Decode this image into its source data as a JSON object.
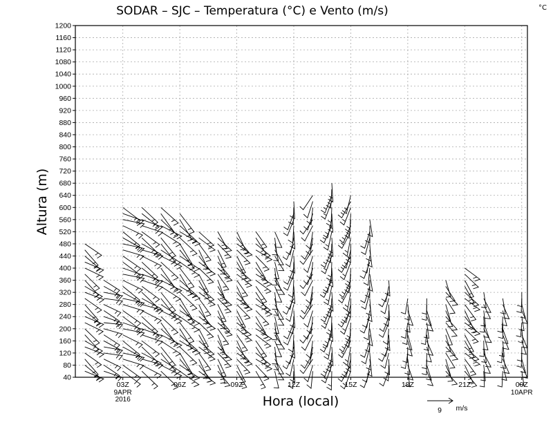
{
  "chart_data": {
    "type": "wind_barb_profile",
    "title": "SODAR – SJC – Temperatura (°C) e Vento (m/s)",
    "corner_label": "°C",
    "xlabel": "Hora (local)",
    "ylabel": "Altura (m)",
    "xlim": [
      0.5,
      24.3
    ],
    "ylim": [
      40,
      1200
    ],
    "y_ticks": [
      40,
      80,
      120,
      160,
      200,
      240,
      280,
      320,
      360,
      400,
      440,
      480,
      520,
      560,
      600,
      640,
      680,
      720,
      760,
      800,
      840,
      880,
      920,
      960,
      1000,
      1040,
      1080,
      1120,
      1160,
      1200
    ],
    "x_ticks": [
      {
        "hour": 3,
        "label": "03Z",
        "sub1": "9APR",
        "sub2": "2016"
      },
      {
        "hour": 6,
        "label": "06Z"
      },
      {
        "hour": 9,
        "label": "09Z"
      },
      {
        "hour": 12,
        "label": "12Z"
      },
      {
        "hour": 15,
        "label": "15Z"
      },
      {
        "hour": 18,
        "label": "18Z"
      },
      {
        "hour": 21,
        "label": "21Z"
      },
      {
        "hour": 24,
        "label": "00Z",
        "sub1": "10APR"
      }
    ],
    "reference_vector": {
      "speed": 9,
      "label": "9",
      "unit": "m/s"
    },
    "profiles": [
      {
        "hour": 1,
        "top": 480,
        "dir": 125,
        "speed": 7
      },
      {
        "hour": 2,
        "top": 360,
        "dir": 110,
        "speed": 6
      },
      {
        "hour": 3,
        "top": 600,
        "dir": 115,
        "speed": 8
      },
      {
        "hour": 4,
        "top": 600,
        "dir": 120,
        "speed": 8
      },
      {
        "hour": 5,
        "top": 610,
        "dir": 130,
        "speed": 9
      },
      {
        "hour": 6,
        "top": 580,
        "dir": 135,
        "speed": 9
      },
      {
        "hour": 7,
        "top": 520,
        "dir": 140,
        "speed": 7
      },
      {
        "hour": 8,
        "top": 520,
        "dir": 145,
        "speed": 6
      },
      {
        "hour": 9,
        "top": 520,
        "dir": 140,
        "speed": 6
      },
      {
        "hour": 10,
        "top": 520,
        "dir": 135,
        "speed": 6
      },
      {
        "hour": 11,
        "top": 520,
        "dir": 160,
        "speed": 5
      },
      {
        "hour": 12,
        "top": 620,
        "dir": 190,
        "speed": 5
      },
      {
        "hour": 13,
        "top": 640,
        "dir": 200,
        "speed": 5
      },
      {
        "hour": 14,
        "top": 690,
        "dir": 190,
        "speed": 6
      },
      {
        "hour": 15,
        "top": 640,
        "dir": 195,
        "speed": 6
      },
      {
        "hour": 16,
        "top": 560,
        "dir": 185,
        "speed": 5
      },
      {
        "hour": 17,
        "top": 360,
        "dir": 190,
        "speed": 4
      },
      {
        "hour": 18,
        "top": 300,
        "dir": 175,
        "speed": 4
      },
      {
        "hour": 19,
        "top": 300,
        "dir": 170,
        "speed": 4
      },
      {
        "hour": 20,
        "top": 360,
        "dir": 150,
        "speed": 5
      },
      {
        "hour": 21,
        "top": 400,
        "dir": 140,
        "speed": 6
      },
      {
        "hour": 22,
        "top": 320,
        "dir": 165,
        "speed": 4
      },
      {
        "hour": 23,
        "top": 300,
        "dir": 170,
        "speed": 4
      },
      {
        "hour": 24,
        "top": 320,
        "dir": 170,
        "speed": 3
      }
    ]
  }
}
